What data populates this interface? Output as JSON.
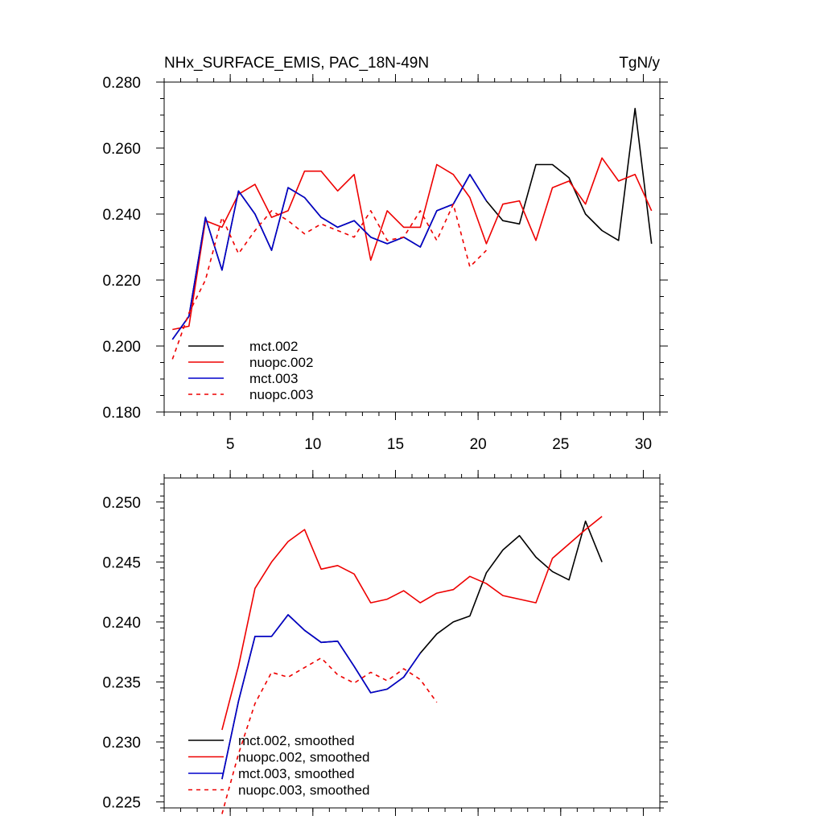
{
  "chart_data": [
    {
      "type": "line",
      "title": "NHx_SURFACE_EMIS, PAC_18N-49N",
      "units": "TgN/y",
      "xlim": [
        1,
        31
      ],
      "ylim": [
        0.18,
        0.28
      ],
      "xticks": [
        5,
        10,
        15,
        20,
        25,
        30
      ],
      "xtick_labels": [
        "5",
        "10",
        "15",
        "20",
        "25",
        "30"
      ],
      "yticks": [
        0.18,
        0.2,
        0.22,
        0.24,
        0.26,
        0.28
      ],
      "ytick_labels": [
        "0.180",
        "0.200",
        "0.220",
        "0.240",
        "0.260",
        "0.280"
      ],
      "legend_position": "bottom-left",
      "series": [
        {
          "name": "mct.002",
          "color": "#000000",
          "dash": "solid",
          "x": [
            1.5,
            2.5,
            3.5,
            4.5,
            5.5,
            6.5,
            7.5,
            8.5,
            9.5,
            10.5,
            11.5,
            12.5,
            13.5,
            14.5,
            15.5,
            16.5,
            17.5,
            18.5,
            19.5,
            20.5,
            21.5,
            22.5,
            23.5,
            24.5,
            25.5,
            26.5,
            27.5,
            28.5,
            29.5,
            30.5
          ],
          "values": [
            0.202,
            0.209,
            0.239,
            0.223,
            0.247,
            0.24,
            0.229,
            0.248,
            0.245,
            0.239,
            0.236,
            0.238,
            0.233,
            0.231,
            0.233,
            0.23,
            0.241,
            0.243,
            0.252,
            0.244,
            0.238,
            0.237,
            0.255,
            0.255,
            0.251,
            0.24,
            0.235,
            0.232,
            0.272,
            0.231
          ]
        },
        {
          "name": "nuopc.002",
          "color": "#ee0000",
          "dash": "solid",
          "x": [
            1.5,
            2.5,
            3.5,
            4.5,
            5.5,
            6.5,
            7.5,
            8.5,
            9.5,
            10.5,
            11.5,
            12.5,
            13.5,
            14.5,
            15.5,
            16.5,
            17.5,
            18.5,
            19.5,
            20.5,
            21.5,
            22.5,
            23.5,
            24.5,
            25.5,
            26.5,
            27.5,
            28.5,
            29.5,
            30.5
          ],
          "values": [
            0.205,
            0.206,
            0.238,
            0.236,
            0.246,
            0.249,
            0.239,
            0.241,
            0.253,
            0.253,
            0.247,
            0.252,
            0.226,
            0.241,
            0.236,
            0.236,
            0.255,
            0.252,
            0.245,
            0.231,
            0.243,
            0.244,
            0.232,
            0.248,
            0.25,
            0.243,
            0.257,
            0.25,
            0.252,
            0.241
          ]
        },
        {
          "name": "mct.003",
          "color": "#0000cc",
          "dash": "solid",
          "x": [
            1.5,
            2.5,
            3.5,
            4.5,
            5.5,
            6.5,
            7.5,
            8.5,
            9.5,
            10.5,
            11.5,
            12.5,
            13.5,
            14.5,
            15.5,
            16.5,
            17.5,
            18.5,
            19.5,
            20.5
          ],
          "values": [
            0.202,
            0.209,
            0.239,
            0.223,
            0.247,
            0.24,
            0.229,
            0.248,
            0.245,
            0.239,
            0.236,
            0.238,
            0.233,
            0.231,
            0.233,
            0.23,
            0.241,
            0.243,
            0.252,
            0.244
          ]
        },
        {
          "name": "nuopc.003",
          "color": "#ee0000",
          "dash": "dashed",
          "x": [
            1.5,
            2.5,
            3.5,
            4.5,
            5.5,
            6.5,
            7.5,
            8.5,
            9.5,
            10.5,
            11.5,
            12.5,
            13.5,
            14.5,
            15.5,
            16.5,
            17.5,
            18.5,
            19.5,
            20.5
          ],
          "values": [
            0.196,
            0.21,
            0.22,
            0.239,
            0.228,
            0.235,
            0.241,
            0.238,
            0.234,
            0.237,
            0.235,
            0.233,
            0.241,
            0.232,
            0.233,
            0.241,
            0.232,
            0.243,
            0.224,
            0.229
          ]
        }
      ]
    },
    {
      "type": "line",
      "xlim": [
        1,
        31
      ],
      "ylim": [
        0.2245,
        0.252
      ],
      "xticks": [
        5,
        10,
        15,
        20,
        25,
        30
      ],
      "yticks": [
        0.225,
        0.23,
        0.235,
        0.24,
        0.245,
        0.25
      ],
      "ytick_labels": [
        "0.225",
        "0.230",
        "0.235",
        "0.240",
        "0.245",
        "0.250"
      ],
      "legend_position": "bottom-left",
      "series": [
        {
          "name": "mct.002, smoothed",
          "color": "#000000",
          "dash": "solid",
          "x": [
            4.5,
            5.5,
            6.5,
            7.5,
            8.5,
            9.5,
            10.5,
            11.5,
            12.5,
            13.5,
            14.5,
            15.5,
            16.5,
            17.5,
            18.5,
            19.5,
            20.5,
            21.5,
            22.5,
            23.5,
            24.5,
            25.5,
            26.5,
            27.5
          ],
          "values": [
            0.2269,
            0.2334,
            0.2388,
            0.2388,
            0.2406,
            0.2393,
            0.2383,
            0.2384,
            0.2363,
            0.2341,
            0.2344,
            0.2354,
            0.2374,
            0.239,
            0.24,
            0.2405,
            0.2441,
            0.246,
            0.2472,
            0.2454,
            0.2442,
            0.2435,
            0.2484,
            0.245
          ]
        },
        {
          "name": "nuopc.002, smoothed",
          "color": "#ee0000",
          "dash": "solid",
          "x": [
            4.5,
            5.5,
            6.5,
            7.5,
            8.5,
            9.5,
            10.5,
            11.5,
            12.5,
            13.5,
            14.5,
            15.5,
            16.5,
            17.5,
            18.5,
            19.5,
            20.5,
            21.5,
            22.5,
            23.5,
            24.5,
            25.5,
            26.5,
            27.5
          ],
          "values": [
            0.231,
            0.2363,
            0.2428,
            0.245,
            0.2467,
            0.2477,
            0.2444,
            0.2447,
            0.244,
            0.2416,
            0.2419,
            0.2426,
            0.2416,
            0.2424,
            0.2427,
            0.2438,
            0.2432,
            0.2422,
            0.2419,
            0.2416,
            0.2453,
            0.2465,
            0.2477,
            0.2488
          ]
        },
        {
          "name": "mct.003, smoothed",
          "color": "#0000cc",
          "dash": "solid",
          "x": [
            4.5,
            5.5,
            6.5,
            7.5,
            8.5,
            9.5,
            10.5,
            11.5,
            12.5,
            13.5,
            14.5,
            15.5,
            16.5
          ],
          "values": [
            0.2269,
            0.2334,
            0.2388,
            0.2388,
            0.2406,
            0.2393,
            0.2383,
            0.2384,
            0.2363,
            0.2341,
            0.2344,
            0.2354,
            0.2374
          ]
        },
        {
          "name": "nuopc.003, smoothed",
          "color": "#ee0000",
          "dash": "dashed",
          "x": [
            4.5,
            5.5,
            6.5,
            7.5,
            8.5,
            9.5,
            10.5,
            11.5,
            12.5,
            13.5,
            14.5,
            15.5,
            16.5,
            17.5
          ],
          "values": [
            0.224,
            0.229,
            0.2332,
            0.2358,
            0.2354,
            0.2362,
            0.237,
            0.2356,
            0.2349,
            0.2358,
            0.2351,
            0.2361,
            0.2352,
            0.2333
          ]
        }
      ]
    }
  ]
}
